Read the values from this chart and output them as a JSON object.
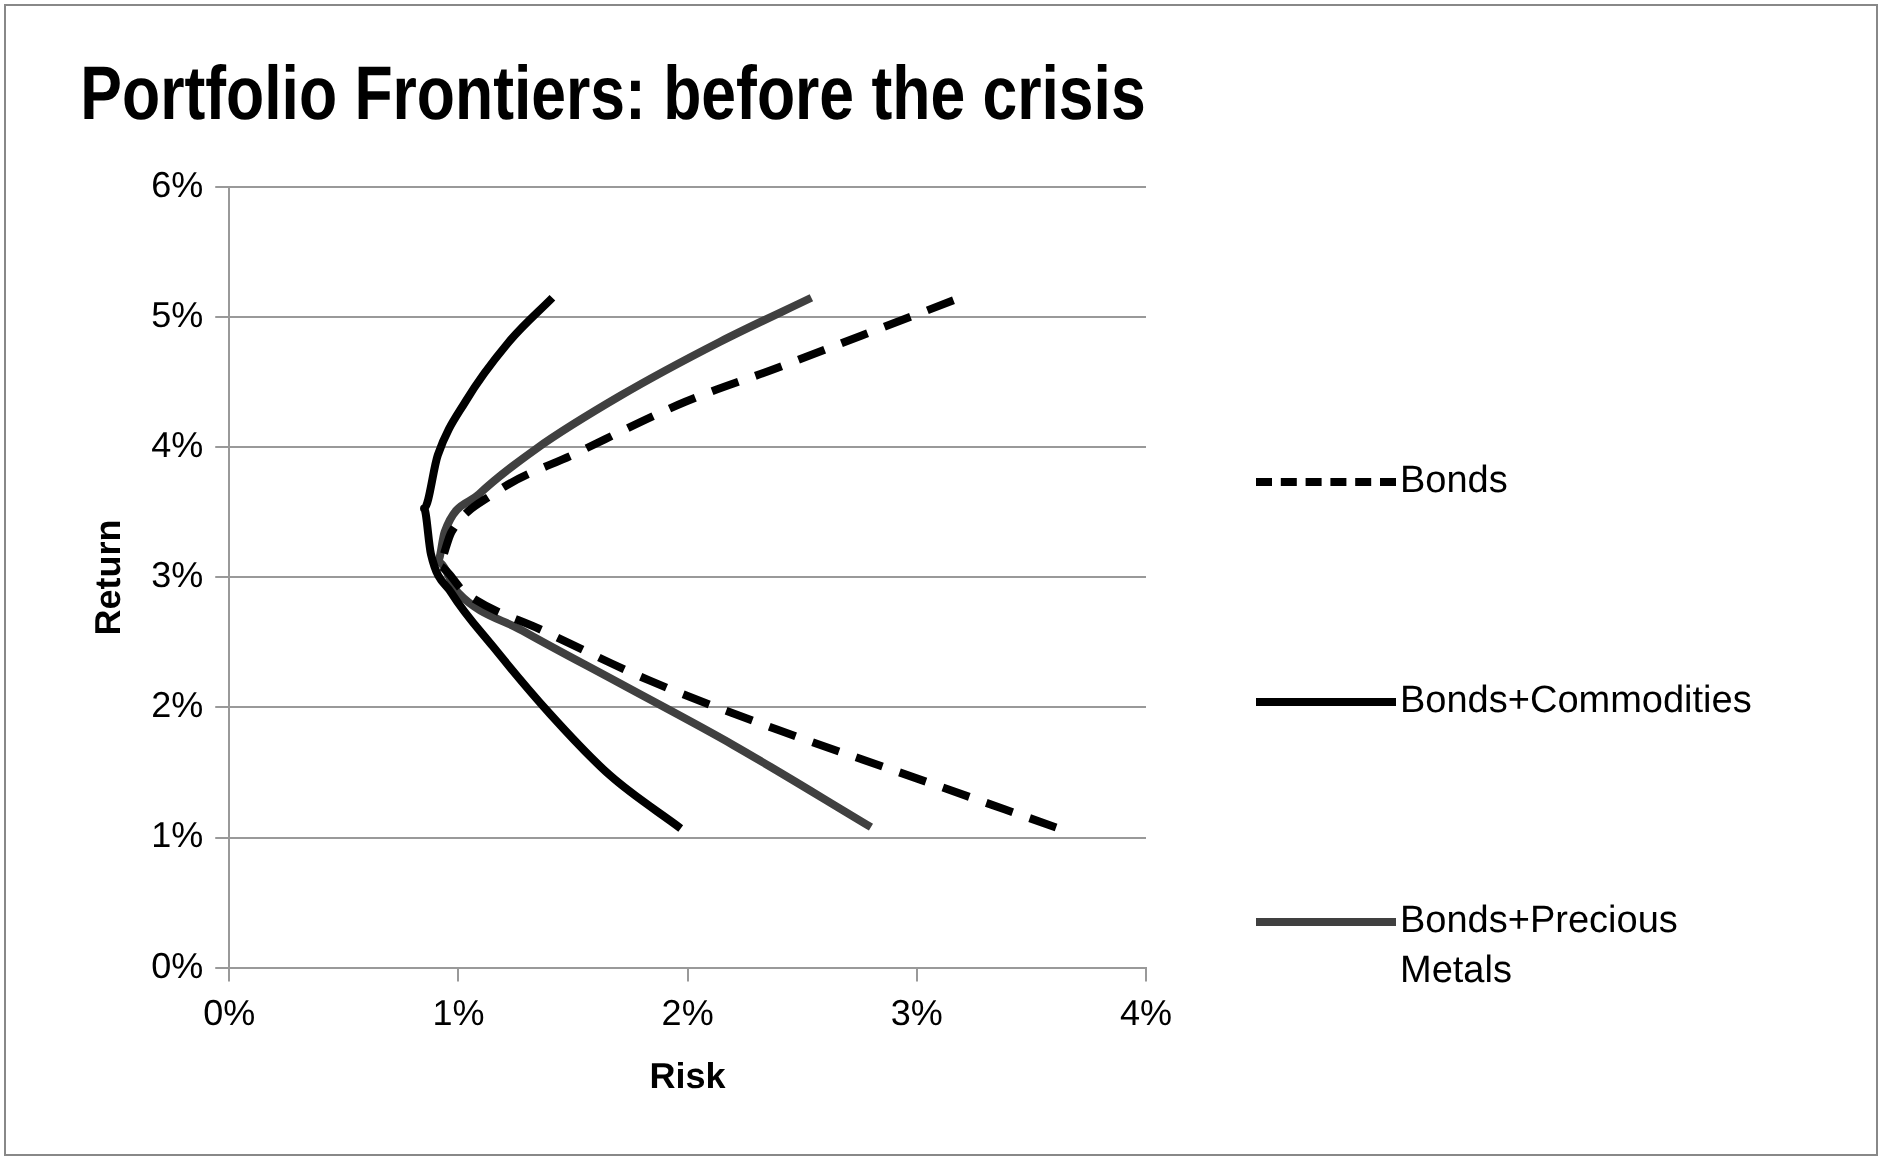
{
  "chart_data": {
    "type": "line",
    "title": "Portfolio Frontiers: before the crisis",
    "xlabel": "Risk",
    "ylabel": "Return",
    "xlim": [
      0,
      4
    ],
    "xticks": [
      {
        "value": 0,
        "label": "0%"
      },
      {
        "value": 1,
        "label": "1%"
      },
      {
        "value": 2,
        "label": "2%"
      },
      {
        "value": 3,
        "label": "3%"
      },
      {
        "value": 4,
        "label": "4%"
      }
    ],
    "ylim": [
      0,
      6
    ],
    "yticks": [
      {
        "value": 0,
        "label": "0%"
      },
      {
        "value": 1,
        "label": "1%"
      },
      {
        "value": 2,
        "label": "2%"
      },
      {
        "value": 3,
        "label": "3%"
      },
      {
        "value": 4,
        "label": "4%"
      },
      {
        "value": 5,
        "label": "5%"
      },
      {
        "value": 6,
        "label": "6%"
      }
    ],
    "grid": "y",
    "legend": "right",
    "marker": "none",
    "series": [
      {
        "name": "Bonds",
        "color": "#000000",
        "line_style": "dashed",
        "x": [
          3.16,
          2.76,
          2.39,
          1.99,
          1.52,
          1.15,
          0.97,
          0.91,
          1.03,
          1.37,
          1.83,
          2.39,
          2.91,
          3.62
        ],
        "values": [
          5.13,
          4.86,
          4.61,
          4.35,
          3.96,
          3.64,
          3.35,
          3.09,
          2.88,
          2.59,
          2.21,
          1.83,
          1.51,
          1.07
        ]
      },
      {
        "name": "Bonds+Commodities",
        "color": "#000000",
        "line_style": "solid",
        "x": [
          1.41,
          1.22,
          1.03,
          0.91,
          0.85,
          0.88,
          0.97,
          1.15,
          1.4,
          1.66,
          1.97
        ],
        "values": [
          5.15,
          4.81,
          4.35,
          3.94,
          3.53,
          3.18,
          2.88,
          2.47,
          1.95,
          1.48,
          1.07
        ]
      },
      {
        "name": "Bonds+Precious Metals",
        "color": "#404040",
        "line_style": "solid",
        "x": [
          2.54,
          2.14,
          1.71,
          1.34,
          1.09,
          0.94,
          0.91,
          1.0,
          1.28,
          1.71,
          2.2,
          2.8
        ],
        "values": [
          5.15,
          4.81,
          4.4,
          3.99,
          3.64,
          3.35,
          3.12,
          2.88,
          2.59,
          2.18,
          1.71,
          1.08
        ]
      }
    ]
  }
}
